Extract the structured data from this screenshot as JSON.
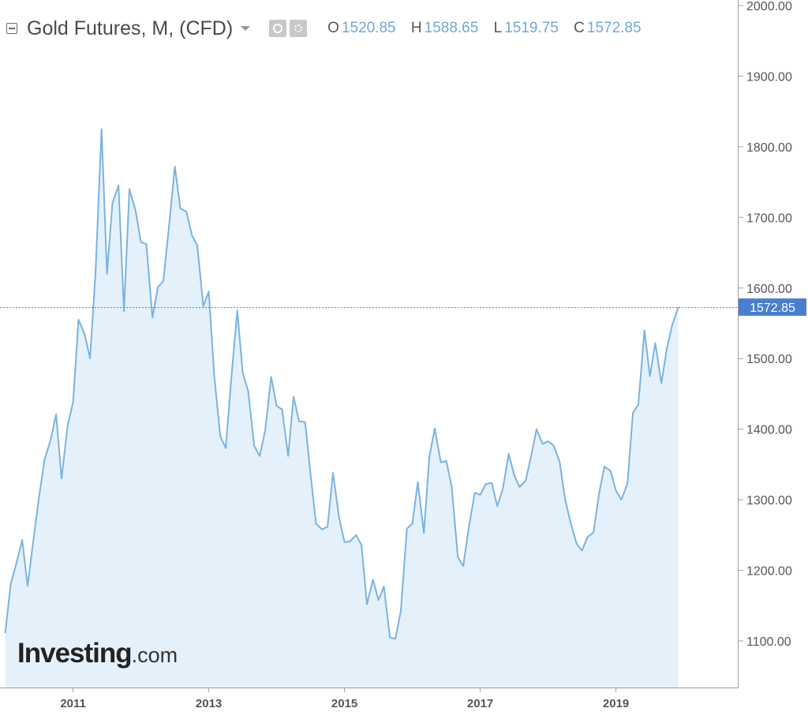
{
  "header": {
    "title": "Gold Futures, M, (CFD)",
    "ohlc": [
      {
        "key": "O",
        "value": "1520.85"
      },
      {
        "key": "H",
        "value": "1588.65"
      },
      {
        "key": "L",
        "value": "1519.75"
      },
      {
        "key": "C",
        "value": "1572.85"
      }
    ]
  },
  "logo": {
    "brand": "Investing",
    "domain": ".com"
  },
  "colors": {
    "line": "#7ab3e2",
    "fill": "#e4f1fb",
    "last_badge": "#4a7fd0",
    "axis": "#a0a0a0"
  },
  "chart_data": {
    "type": "area",
    "x_ticks": [
      "2011",
      "2013",
      "2015",
      "2017",
      "2019"
    ],
    "y_ticks": [
      "1100.00",
      "1200.00",
      "1300.00",
      "1400.00",
      "1500.00",
      "1600.00",
      "1700.00",
      "1800.00",
      "1900.00",
      "2000.00"
    ],
    "ylim": [
      1035,
      2000
    ],
    "xlim": [
      2010.0,
      2021.0
    ],
    "grid": false,
    "last_value": "1572.85",
    "series": [
      {
        "x": [
          2010.0,
          2010.08,
          2010.17,
          2010.25,
          2010.33,
          2010.42,
          2010.5,
          2010.58,
          2010.67,
          2010.75,
          2010.83,
          2010.92,
          2011.0,
          2011.08,
          2011.17,
          2011.25,
          2011.33,
          2011.42,
          2011.5,
          2011.58,
          2011.67,
          2011.75,
          2011.83,
          2011.92,
          2012.0,
          2012.08,
          2012.17,
          2012.25,
          2012.33,
          2012.42,
          2012.5,
          2012.58,
          2012.67,
          2012.75,
          2012.83,
          2012.92,
          2013.0,
          2013.08,
          2013.17,
          2013.25,
          2013.33,
          2013.42,
          2013.5,
          2013.58,
          2013.67,
          2013.75,
          2013.83,
          2013.92,
          2014.0,
          2014.08,
          2014.17,
          2014.25,
          2014.33,
          2014.42,
          2014.5,
          2014.58,
          2014.67,
          2014.75,
          2014.83,
          2014.92,
          2015.0,
          2015.08,
          2015.17,
          2015.25,
          2015.33,
          2015.42,
          2015.5,
          2015.58,
          2015.67,
          2015.75,
          2015.83,
          2015.92,
          2016.0,
          2016.08,
          2016.17,
          2016.25,
          2016.33,
          2016.42,
          2016.5,
          2016.58,
          2016.67,
          2016.75,
          2016.83,
          2016.92,
          2017.0,
          2017.08,
          2017.17,
          2017.25,
          2017.33,
          2017.42,
          2017.5,
          2017.58,
          2017.67,
          2017.75,
          2017.83,
          2017.92,
          2018.0,
          2018.08,
          2018.17,
          2018.25,
          2018.33,
          2018.42,
          2018.5,
          2018.58,
          2018.67,
          2018.75,
          2018.83,
          2018.92,
          2019.0,
          2019.08,
          2019.17,
          2019.25,
          2019.33,
          2019.42,
          2019.5,
          2019.58,
          2019.67,
          2019.75,
          2019.83,
          2019.92
        ],
        "values": [
          1111,
          1180,
          1212,
          1243,
          1178,
          1246,
          1305,
          1357,
          1385,
          1421,
          1330,
          1405,
          1438,
          1555,
          1535,
          1500,
          1620,
          1825,
          1620,
          1720,
          1745,
          1567,
          1740,
          1710,
          1665,
          1662,
          1558,
          1601,
          1610,
          1693,
          1772,
          1713,
          1708,
          1675,
          1660,
          1574,
          1595,
          1476,
          1390,
          1373,
          1470,
          1568,
          1480,
          1454,
          1376,
          1362,
          1398,
          1474,
          1433,
          1428,
          1362,
          1446,
          1411,
          1410,
          1336,
          1266,
          1258,
          1262,
          1338,
          1275,
          1240,
          1241,
          1250,
          1236,
          1152,
          1187,
          1158,
          1177,
          1105,
          1103,
          1143,
          1259,
          1266,
          1325,
          1253,
          1361,
          1401,
          1353,
          1355,
          1318,
          1219,
          1206,
          1260,
          1310,
          1307,
          1322,
          1324,
          1291,
          1314,
          1365,
          1335,
          1318,
          1327,
          1362,
          1400,
          1379,
          1383,
          1377,
          1354,
          1301,
          1268,
          1238,
          1228,
          1247,
          1254,
          1308,
          1347,
          1341,
          1313,
          1300,
          1323,
          1423,
          1435,
          1540,
          1475,
          1522,
          1465,
          1514,
          1548,
          1572.85
        ]
      }
    ]
  }
}
